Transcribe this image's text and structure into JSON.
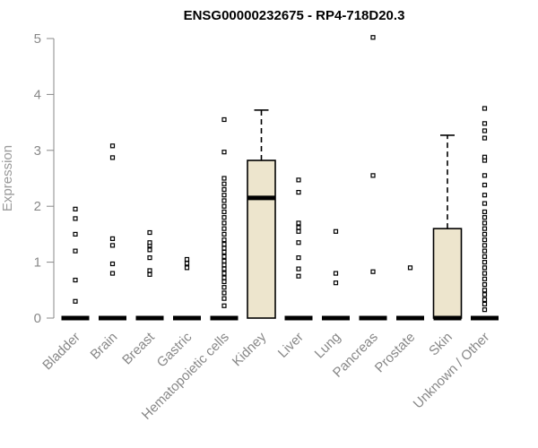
{
  "chart_data": {
    "type": "boxplot",
    "title": "ENSG00000232675 - RP4-718D20.3",
    "xlabel": "",
    "ylabel": "Expression",
    "ylim": [
      0,
      5
    ],
    "yticks": [
      0,
      1,
      2,
      3,
      4,
      5
    ],
    "grid": false,
    "box_color": "#ede5cd",
    "categories": [
      "Bladder",
      "Brain",
      "Breast",
      "Gastric",
      "Hematopoietic cells",
      "Kidney",
      "Liver",
      "Lung",
      "Pancreas",
      "Prostate",
      "Skin",
      "Unknown / Other"
    ],
    "boxes": [
      {
        "median": 0,
        "q1": 0,
        "q3": 0,
        "whisker_low": 0,
        "whisker_high": 0,
        "outliers": [
          0.3,
          0.68,
          1.2,
          1.5,
          1.78,
          1.95
        ]
      },
      {
        "median": 0,
        "q1": 0,
        "q3": 0,
        "whisker_low": 0,
        "whisker_high": 0,
        "outliers": [
          0.8,
          0.97,
          1.3,
          1.42,
          2.87,
          3.08
        ]
      },
      {
        "median": 0,
        "q1": 0,
        "q3": 0,
        "whisker_low": 0,
        "whisker_high": 0,
        "outliers": [
          0.78,
          0.85,
          1.08,
          1.22,
          1.3,
          1.35,
          1.53
        ]
      },
      {
        "median": 0,
        "q1": 0,
        "q3": 0,
        "whisker_low": 0,
        "whisker_high": 0,
        "outliers": [
          0.9,
          0.98,
          1.05
        ]
      },
      {
        "median": 0,
        "q1": 0,
        "q3": 0,
        "whisker_low": 0,
        "whisker_high": 0,
        "outliers": [
          0.22,
          0.35,
          0.45,
          0.55,
          0.65,
          0.72,
          0.8,
          0.88,
          0.95,
          1.02,
          1.1,
          1.18,
          1.25,
          1.32,
          1.4,
          1.5,
          1.6,
          1.7,
          1.8,
          1.9,
          2.0,
          2.1,
          2.2,
          2.3,
          2.4,
          2.5,
          2.97,
          3.55
        ]
      },
      {
        "median": 2.15,
        "q1": 0,
        "q3": 2.82,
        "whisker_low": 0,
        "whisker_high": 3.72,
        "outliers": []
      },
      {
        "median": 0,
        "q1": 0,
        "q3": 0,
        "whisker_low": 0,
        "whisker_high": 0,
        "outliers": [
          0.75,
          0.88,
          1.08,
          1.35,
          1.55,
          1.62,
          1.7,
          2.25,
          2.47
        ]
      },
      {
        "median": 0,
        "q1": 0,
        "q3": 0,
        "whisker_low": 0,
        "whisker_high": 0,
        "outliers": [
          0.63,
          0.8,
          1.55
        ]
      },
      {
        "median": 0,
        "q1": 0,
        "q3": 0,
        "whisker_low": 0,
        "whisker_high": 0,
        "outliers": [
          0.83,
          2.55,
          5.02
        ]
      },
      {
        "median": 0,
        "q1": 0,
        "q3": 0,
        "whisker_low": 0,
        "whisker_high": 0,
        "outliers": [
          0.9
        ]
      },
      {
        "median": 0,
        "q1": 0,
        "q3": 1.6,
        "whisker_low": 0,
        "whisker_high": 3.27,
        "outliers": []
      },
      {
        "median": 0,
        "q1": 0,
        "q3": 0,
        "whisker_low": 0,
        "whisker_high": 0,
        "outliers": [
          0.15,
          0.25,
          0.33,
          0.42,
          0.5,
          0.6,
          0.7,
          0.8,
          0.9,
          1.0,
          1.1,
          1.2,
          1.3,
          1.4,
          1.5,
          1.6,
          1.7,
          1.8,
          1.9,
          2.05,
          2.2,
          2.38,
          2.55,
          2.82,
          2.88,
          3.22,
          3.35,
          3.48,
          3.75
        ]
      }
    ]
  }
}
